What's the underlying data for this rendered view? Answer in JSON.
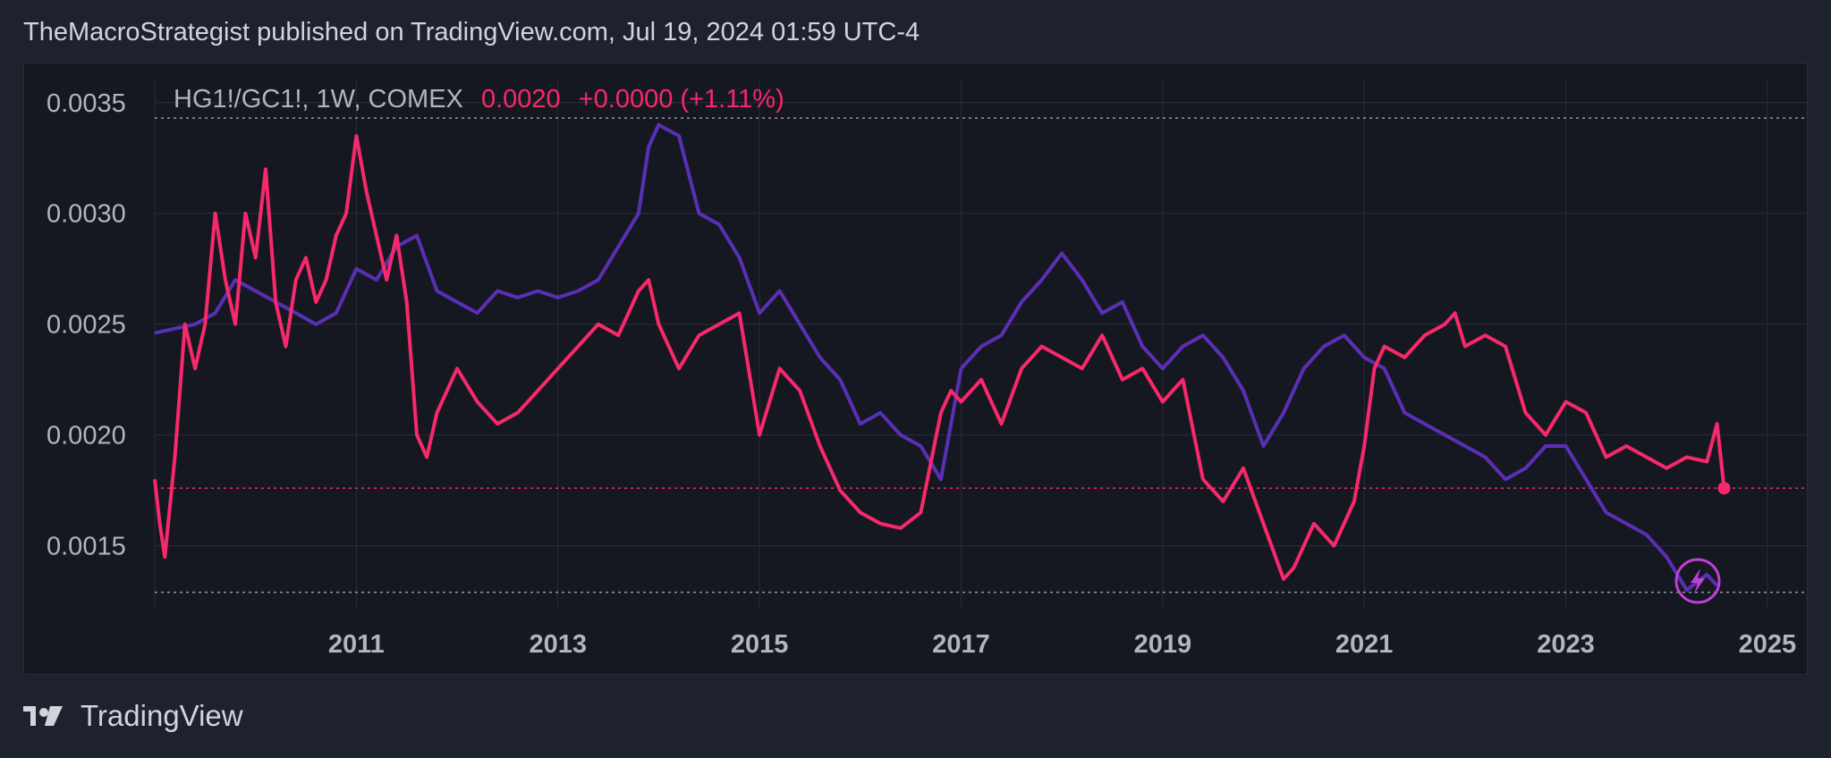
{
  "header": {
    "publisher_line": "TheMacroStrategist published on TradingView.com, Jul 19, 2024 01:59 UTC-4"
  },
  "legend": {
    "symbol": "HG1!/GC1!, 1W, COMEX",
    "last_value": "0.0020",
    "change": "+0.0000 (+1.11%)"
  },
  "footer": {
    "brand": "TradingView"
  },
  "colors": {
    "ratio_line": "#f7296a",
    "overlay_line": "#5b2fb5",
    "background": "#151821",
    "grid": "#2a2e39",
    "badge": "#c13fd9"
  },
  "icons": {
    "brand_logo": "tradingview-logo-icon",
    "badge": "lightning-bolt-icon"
  },
  "chart_data": {
    "type": "line",
    "x_ticks": [
      "2011",
      "2013",
      "2015",
      "2017",
      "2019",
      "2021",
      "2023",
      "2025"
    ],
    "y_ticks": [
      "0.0015",
      "0.0020",
      "0.0025",
      "0.0030",
      "0.0035"
    ],
    "xlim": [
      2009.0,
      2025.4
    ],
    "ylim": [
      0.00122,
      0.0036
    ],
    "grid": true,
    "reference_lines": [
      0.00343,
      0.00176,
      0.00129
    ],
    "series": [
      {
        "color": "#f7296a",
        "x": [
          2009.0,
          2009.05,
          2009.1,
          2009.2,
          2009.3,
          2009.4,
          2009.5,
          2009.6,
          2009.7,
          2009.8,
          2009.9,
          2010.0,
          2010.1,
          2010.2,
          2010.3,
          2010.4,
          2010.5,
          2010.6,
          2010.7,
          2010.8,
          2010.9,
          2011.0,
          2011.1,
          2011.2,
          2011.3,
          2011.4,
          2011.5,
          2011.6,
          2011.7,
          2011.8,
          2011.9,
          2012.0,
          2012.2,
          2012.4,
          2012.6,
          2012.8,
          2013.0,
          2013.2,
          2013.4,
          2013.6,
          2013.8,
          2013.9,
          2014.0,
          2014.2,
          2014.4,
          2014.6,
          2014.8,
          2015.0,
          2015.2,
          2015.4,
          2015.6,
          2015.8,
          2016.0,
          2016.2,
          2016.4,
          2016.6,
          2016.8,
          2016.9,
          2017.0,
          2017.2,
          2017.4,
          2017.6,
          2017.8,
          2018.0,
          2018.2,
          2018.4,
          2018.6,
          2018.8,
          2019.0,
          2019.2,
          2019.4,
          2019.6,
          2019.8,
          2020.0,
          2020.2,
          2020.3,
          2020.5,
          2020.7,
          2020.9,
          2021.0,
          2021.1,
          2021.2,
          2021.4,
          2021.6,
          2021.8,
          2021.9,
          2022.0,
          2022.2,
          2022.4,
          2022.6,
          2022.8,
          2023.0,
          2023.2,
          2023.4,
          2023.6,
          2023.8,
          2024.0,
          2024.2,
          2024.4,
          2024.5,
          2024.57
        ],
        "y": [
          0.0018,
          0.0016,
          0.00145,
          0.0019,
          0.0025,
          0.0023,
          0.0025,
          0.003,
          0.0027,
          0.0025,
          0.003,
          0.0028,
          0.0032,
          0.0026,
          0.0024,
          0.0027,
          0.0028,
          0.0026,
          0.0027,
          0.0029,
          0.003,
          0.00335,
          0.0031,
          0.0029,
          0.0027,
          0.0029,
          0.0026,
          0.002,
          0.0019,
          0.0021,
          0.0022,
          0.0023,
          0.00215,
          0.00205,
          0.0021,
          0.0022,
          0.0023,
          0.0024,
          0.0025,
          0.00245,
          0.00265,
          0.0027,
          0.0025,
          0.0023,
          0.00245,
          0.0025,
          0.00255,
          0.002,
          0.0023,
          0.0022,
          0.00195,
          0.00175,
          0.00165,
          0.0016,
          0.00158,
          0.00165,
          0.0021,
          0.0022,
          0.00215,
          0.00225,
          0.00205,
          0.0023,
          0.0024,
          0.00235,
          0.0023,
          0.00245,
          0.00225,
          0.0023,
          0.00215,
          0.00225,
          0.0018,
          0.0017,
          0.00185,
          0.0016,
          0.00135,
          0.0014,
          0.0016,
          0.0015,
          0.0017,
          0.00195,
          0.0023,
          0.0024,
          0.00235,
          0.00245,
          0.0025,
          0.00255,
          0.0024,
          0.00245,
          0.0024,
          0.0021,
          0.002,
          0.00215,
          0.0021,
          0.0019,
          0.00195,
          0.0019,
          0.00185,
          0.0019,
          0.00188,
          0.00205,
          0.00176
        ]
      },
      {
        "color": "#5b2fb5",
        "x": [
          2009.0,
          2009.4,
          2009.6,
          2009.8,
          2010.0,
          2010.2,
          2010.4,
          2010.6,
          2010.8,
          2011.0,
          2011.2,
          2011.4,
          2011.6,
          2011.8,
          2012.0,
          2012.2,
          2012.4,
          2012.6,
          2012.8,
          2013.0,
          2013.2,
          2013.4,
          2013.6,
          2013.8,
          2013.9,
          2014.0,
          2014.2,
          2014.4,
          2014.6,
          2014.8,
          2015.0,
          2015.2,
          2015.4,
          2015.6,
          2015.8,
          2016.0,
          2016.2,
          2016.4,
          2016.6,
          2016.8,
          2017.0,
          2017.2,
          2017.4,
          2017.6,
          2017.8,
          2018.0,
          2018.2,
          2018.4,
          2018.6,
          2018.8,
          2019.0,
          2019.2,
          2019.4,
          2019.6,
          2019.8,
          2020.0,
          2020.2,
          2020.4,
          2020.6,
          2020.8,
          2021.0,
          2021.2,
          2021.4,
          2021.6,
          2021.8,
          2022.0,
          2022.2,
          2022.4,
          2022.6,
          2022.8,
          2023.0,
          2023.2,
          2023.4,
          2023.6,
          2023.8,
          2024.0,
          2024.2,
          2024.4,
          2024.5
        ],
        "y": [
          0.00246,
          0.0025,
          0.00255,
          0.0027,
          0.00265,
          0.0026,
          0.00255,
          0.0025,
          0.00255,
          0.00275,
          0.0027,
          0.00285,
          0.0029,
          0.00265,
          0.0026,
          0.00255,
          0.00265,
          0.00262,
          0.00265,
          0.00262,
          0.00265,
          0.0027,
          0.00285,
          0.003,
          0.0033,
          0.0034,
          0.00335,
          0.003,
          0.00295,
          0.0028,
          0.00255,
          0.00265,
          0.0025,
          0.00235,
          0.00225,
          0.00205,
          0.0021,
          0.002,
          0.00195,
          0.0018,
          0.0023,
          0.0024,
          0.00245,
          0.0026,
          0.0027,
          0.00282,
          0.0027,
          0.00255,
          0.0026,
          0.0024,
          0.0023,
          0.0024,
          0.00245,
          0.00235,
          0.0022,
          0.00195,
          0.0021,
          0.0023,
          0.0024,
          0.00245,
          0.00235,
          0.0023,
          0.0021,
          0.00205,
          0.002,
          0.00195,
          0.0019,
          0.0018,
          0.00185,
          0.00195,
          0.00195,
          0.0018,
          0.00165,
          0.0016,
          0.00155,
          0.00145,
          0.0013,
          0.00137,
          0.00132
        ]
      }
    ]
  }
}
